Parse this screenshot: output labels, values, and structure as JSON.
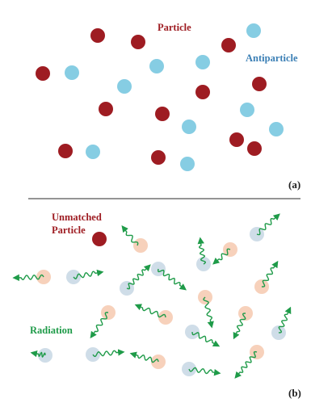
{
  "panel_a": {
    "label": "(a)",
    "particle_label": "Particle",
    "antiparticle_label": "Antiparticle"
  },
  "panel_b": {
    "label": "(b)",
    "unmatched_label_line1": "Unmatched",
    "unmatched_label_line2": "Particle",
    "radiation_label": "Radiation"
  },
  "colors": {
    "particle": "#9e1c22",
    "antiparticle": "#86cde3",
    "particle_label": "#9e1c22",
    "antiparticle_label": "#3b7fb5",
    "radiation": "#1f9b49",
    "annihilated_particle": "#f7d1bb",
    "annihilated_antiparticle": "#cfdde8",
    "text": "#222222",
    "divider": "#555555"
  }
}
